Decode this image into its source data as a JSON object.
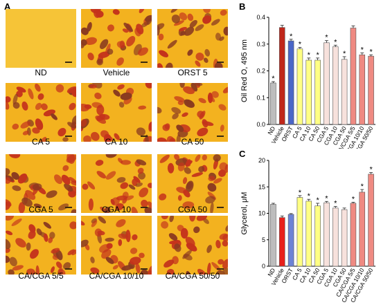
{
  "panels": {
    "a": "A",
    "b": "B",
    "c": "C"
  },
  "micrographs": [
    {
      "caption": "ND",
      "cells": false
    },
    {
      "caption": "Vehicle",
      "cells": true
    },
    {
      "caption": "ORST 5",
      "cells": true
    },
    {
      "caption": "CA 5",
      "cells": true
    },
    {
      "caption": "CA 10",
      "cells": true
    },
    {
      "caption": "CA 50",
      "cells": true
    },
    {
      "caption": "CGA 5",
      "cells": true
    },
    {
      "caption": "CGA 10",
      "cells": true
    },
    {
      "caption": "CGA 50",
      "cells": true
    },
    {
      "caption": "CA/CGA 5/5",
      "cells": true
    },
    {
      "caption": "CA/CGA 10/10",
      "cells": true
    },
    {
      "caption": "CA/CGA 50/50",
      "cells": true
    }
  ],
  "chart_data": [
    {
      "type": "bar",
      "ylabel": "Oil Red O, 495 nm",
      "ylim": [
        0.0,
        0.4
      ],
      "yticks": [
        "0.0",
        "0.1",
        "0.2",
        "0.3",
        "0.4"
      ],
      "categories": [
        "ND",
        "Vehicle",
        "ORST",
        "CA 5",
        "CA 10",
        "CA 50",
        "CGA 5",
        "CGA 10",
        "CGA 50",
        "CA/CGA 5/5",
        "CA/CGA 10/10",
        "CA/CGA 50/50"
      ],
      "values": [
        0.155,
        0.362,
        0.312,
        0.282,
        0.24,
        0.24,
        0.305,
        0.29,
        0.243,
        0.36,
        0.26,
        0.255
      ],
      "errors": [
        0.005,
        0.008,
        0.006,
        0.006,
        0.008,
        0.008,
        0.008,
        0.006,
        0.01,
        0.008,
        0.007,
        0.005
      ],
      "significant": [
        true,
        false,
        true,
        true,
        true,
        true,
        true,
        true,
        true,
        false,
        true,
        true
      ],
      "colors": [
        "#bdbdbd",
        "#c0271a",
        "#4a66c8",
        "#ffff84",
        "#ffff84",
        "#ffff84",
        "#f7e1dc",
        "#f7e1dc",
        "#f7e1dc",
        "#ef8a82",
        "#ef8a82",
        "#ef8a82"
      ],
      "grid": false
    },
    {
      "type": "bar",
      "ylabel": "Glycerol, μM",
      "ylim": [
        0,
        20
      ],
      "yticks": [
        "0",
        "5",
        "10",
        "15",
        "20"
      ],
      "categories": [
        "ND",
        "Vehicle",
        "ORST",
        "CA 5",
        "CA 10",
        "CA 50",
        "CGA 5",
        "CGA 10",
        "CGA 50",
        "CA/CGA 5/5",
        "CA/CGA 10/10",
        "CA/CGA 50/50"
      ],
      "values": [
        11.7,
        9.2,
        9.8,
        13.0,
        12.3,
        11.4,
        12.0,
        11.0,
        10.7,
        11.9,
        14.0,
        17.4
      ],
      "errors": [
        0.2,
        0.3,
        0.15,
        0.35,
        0.35,
        0.5,
        0.25,
        0.3,
        0.3,
        0.2,
        0.5,
        0.3
      ],
      "significant": [
        false,
        false,
        false,
        true,
        true,
        true,
        true,
        true,
        false,
        true,
        true,
        true
      ],
      "colors": [
        "#bdbdbd",
        "#e8201a",
        "#6c83d6",
        "#ffff84",
        "#ffff84",
        "#ffff84",
        "#f7e1dc",
        "#f7e1dc",
        "#f7e1dc",
        "#ef8a82",
        "#ef8a82",
        "#ef8a82"
      ],
      "grid": false
    }
  ],
  "sig_marker": "*"
}
